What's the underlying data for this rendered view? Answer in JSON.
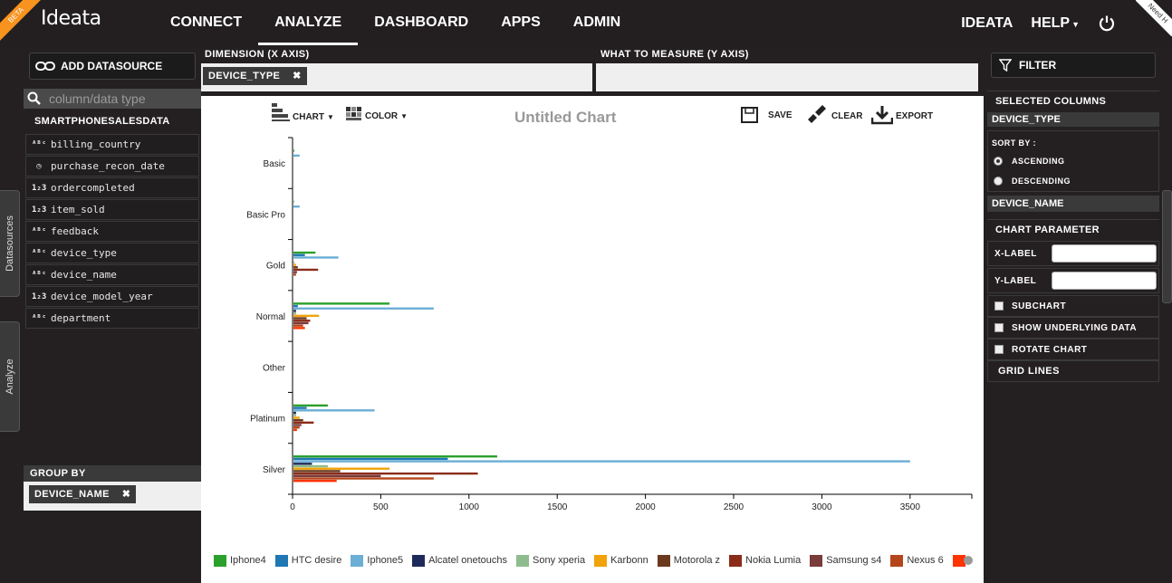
{
  "header": {
    "beta": "BETA",
    "logo": "Ideata",
    "nav": [
      "CONNECT",
      "ANALYZE",
      "DASHBOARD",
      "APPS",
      "ADMIN"
    ],
    "active_nav": "ANALYZE",
    "user": "IDEATA",
    "help": "HELP",
    "need_help": "Need H"
  },
  "side_tabs": {
    "datasources": "Datasources",
    "analyze": "Analyze"
  },
  "left": {
    "add_datasource": "ADD DATASOURCE",
    "search_placeholder": "column/data type",
    "datasource_name": "SMARTPHONESALESDATA",
    "columns": [
      {
        "name": "billing_country",
        "icon": "text-type-icon"
      },
      {
        "name": "purchase_recon_date",
        "icon": "clock-icon"
      },
      {
        "name": "ordercompleted",
        "icon": "numeric-type-icon"
      },
      {
        "name": "item_sold",
        "icon": "numeric-type-icon"
      },
      {
        "name": "feedback",
        "icon": "text-type-icon"
      },
      {
        "name": "device_type",
        "icon": "text-type-icon"
      },
      {
        "name": "device_name",
        "icon": "text-type-icon"
      },
      {
        "name": "device_model_year",
        "icon": "numeric-type-icon"
      },
      {
        "name": "department",
        "icon": "text-type-icon"
      }
    ],
    "group_by_label": "GROUP BY",
    "group_by_chip": "DEVICE_NAME"
  },
  "strip": {
    "dimension_label": "DIMENSION (X AXIS)",
    "measure_label": "WHAT TO MEASURE (Y AXIS)",
    "dimension_chip": "DEVICE_TYPE"
  },
  "toolbar": {
    "chart": "CHART",
    "color": "COLOR",
    "save": "SAVE",
    "clear": "CLEAR",
    "export": "EXPORT"
  },
  "right": {
    "filter": "FILTER",
    "selected_columns": "SELECTED COLUMNS",
    "col1": "DEVICE_TYPE",
    "sort_by": "SORT BY :",
    "ascending": "ASCENDING",
    "descending": "DESCENDING",
    "col2": "DEVICE_NAME",
    "chart_parameter": "CHART PARAMETER",
    "xlabel": "X-LABEL",
    "ylabel": "Y-LABEL",
    "subchart": "SUBCHART",
    "show_underlying": "SHOW UNDERLYING DATA",
    "rotate_chart": "ROTATE CHART",
    "grid_lines": "GRID LINES"
  },
  "chart_data": {
    "type": "bar",
    "orientation": "horizontal",
    "title": "Untitled Chart",
    "categories": [
      "Basic",
      "Basic Pro",
      "Gold",
      "Normal",
      "Other",
      "Platinum",
      "Silver"
    ],
    "xlim": [
      0,
      3850
    ],
    "xticks": [
      0,
      500,
      1000,
      1500,
      2000,
      2500,
      3000,
      3500
    ],
    "series": [
      {
        "name": "Iphone4",
        "color": "#2ca02c",
        "values": [
          10,
          8,
          130,
          550,
          0,
          200,
          1160
        ]
      },
      {
        "name": "HTC desire",
        "color": "#1f77b4",
        "values": [
          0,
          0,
          70,
          30,
          0,
          80,
          880
        ]
      },
      {
        "name": "Iphone5",
        "color": "#6baed6",
        "values": [
          40,
          40,
          260,
          800,
          0,
          465,
          3500
        ]
      },
      {
        "name": "Alcatel onetouchs",
        "color": "#1f2a5c",
        "values": [
          0,
          0,
          0,
          20,
          0,
          20,
          110
        ]
      },
      {
        "name": "Sony xperia",
        "color": "#8fbc8f",
        "values": [
          0,
          0,
          10,
          20,
          0,
          20,
          200
        ]
      },
      {
        "name": "Karbonn",
        "color": "#f0a30a",
        "values": [
          5,
          0,
          20,
          150,
          0,
          40,
          550
        ]
      },
      {
        "name": "Motorola z",
        "color": "#6b3a1e",
        "values": [
          5,
          0,
          30,
          80,
          0,
          60,
          270
        ]
      },
      {
        "name": "Nokia Lumia",
        "color": "#8b2c1a",
        "values": [
          0,
          0,
          145,
          100,
          0,
          120,
          1050
        ]
      },
      {
        "name": "Samsung s4",
        "color": "#7a3b3b",
        "values": [
          0,
          0,
          25,
          90,
          0,
          50,
          500
        ]
      },
      {
        "name": "Nexus 6",
        "color": "#b5451b",
        "values": [
          0,
          5,
          20,
          60,
          0,
          40,
          800
        ]
      },
      {
        "name": "Asus",
        "color": "#ff3300",
        "values": [
          0,
          0,
          0,
          70,
          0,
          25,
          250
        ]
      }
    ],
    "legend": "bottom"
  }
}
